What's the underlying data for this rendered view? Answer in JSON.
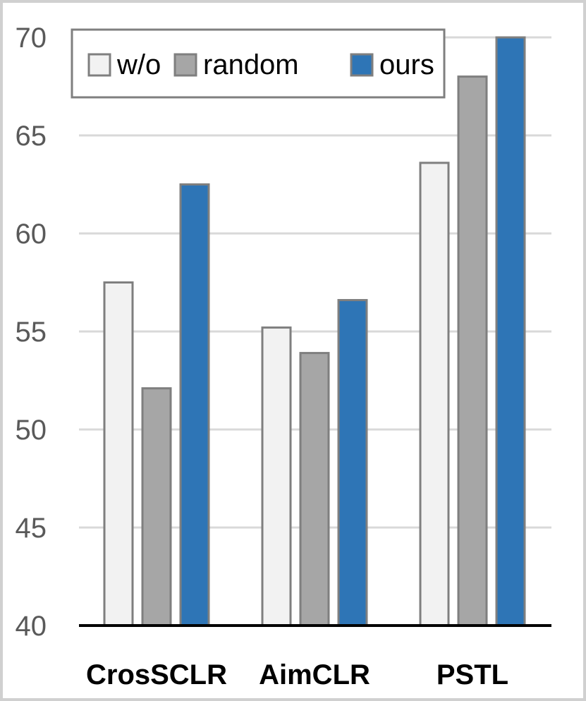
{
  "chart_data": {
    "type": "bar",
    "categories": [
      "CrosSCLR",
      "AimCLR",
      "PSTL"
    ],
    "series": [
      {
        "name": "w/o",
        "color": "#f2f2f2",
        "values": [
          57.5,
          55.2,
          63.6
        ]
      },
      {
        "name": "random",
        "color": "#a6a6a6",
        "values": [
          52.1,
          53.9,
          68.0
        ]
      },
      {
        "name": "ours",
        "color": "#2e75b6",
        "values": [
          62.5,
          56.6,
          70.0
        ]
      }
    ],
    "title": "",
    "xlabel": "",
    "ylabel": "",
    "ylim": [
      40,
      70
    ],
    "yticks": [
      40,
      45,
      50,
      55,
      60,
      65,
      70
    ],
    "grid": true,
    "legend_position": "top-left"
  }
}
